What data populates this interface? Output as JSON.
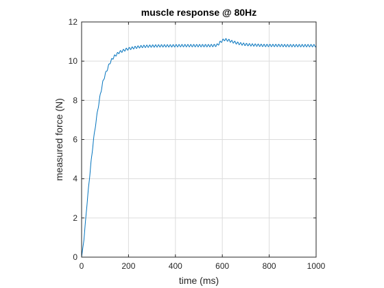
{
  "chart_data": {
    "type": "line",
    "title": "muscle response @ 80Hz",
    "xlabel": "time (ms)",
    "ylabel": "measured force (N)",
    "xlim": [
      0,
      1000
    ],
    "ylim": [
      0,
      12
    ],
    "xticks": [
      0,
      200,
      400,
      600,
      800,
      1000
    ],
    "yticks": [
      0,
      2,
      4,
      6,
      8,
      10,
      12
    ],
    "grid": true,
    "line_color": "#0072BD",
    "series": [
      {
        "oscillation_period_ms": 12.5,
        "x": [
          0,
          10,
          20,
          30,
          40,
          50,
          60,
          70,
          80,
          90,
          100,
          110,
          120,
          130,
          140,
          150,
          160,
          170,
          180,
          190,
          200,
          220,
          240,
          260,
          280,
          300,
          340,
          380,
          420,
          460,
          500,
          540,
          570,
          580,
          590,
          600,
          610,
          620,
          630,
          640,
          650,
          660,
          680,
          700,
          720,
          740,
          760,
          780,
          800,
          840,
          880,
          920,
          960,
          1000
        ],
        "y": [
          0,
          0.9,
          2.3,
          3.6,
          4.8,
          5.9,
          6.8,
          7.6,
          8.3,
          8.9,
          9.3,
          9.6,
          9.9,
          10.1,
          10.25,
          10.35,
          10.45,
          10.5,
          10.55,
          10.6,
          10.63,
          10.68,
          10.72,
          10.75,
          10.76,
          10.77,
          10.78,
          10.78,
          10.79,
          10.79,
          10.79,
          10.79,
          10.8,
          10.83,
          10.95,
          11.05,
          11.1,
          11.08,
          11.05,
          11.0,
          10.97,
          10.93,
          10.88,
          10.85,
          10.83,
          10.82,
          10.81,
          10.8,
          10.8,
          10.8,
          10.79,
          10.79,
          10.79,
          10.79
        ],
        "oscillation_amplitude": [
          0,
          0.02,
          0.03,
          0.04,
          0.05,
          0.05,
          0.06,
          0.06,
          0.06,
          0.06,
          0.06,
          0.06,
          0.06,
          0.06,
          0.06,
          0.06,
          0.06,
          0.06,
          0.06,
          0.06,
          0.06,
          0.06,
          0.06,
          0.06,
          0.06,
          0.06,
          0.06,
          0.06,
          0.06,
          0.06,
          0.06,
          0.06,
          0.06,
          0.06,
          0.06,
          0.06,
          0.06,
          0.06,
          0.06,
          0.06,
          0.06,
          0.06,
          0.06,
          0.06,
          0.06,
          0.06,
          0.06,
          0.06,
          0.06,
          0.06,
          0.06,
          0.06,
          0.06,
          0.06
        ]
      }
    ]
  }
}
